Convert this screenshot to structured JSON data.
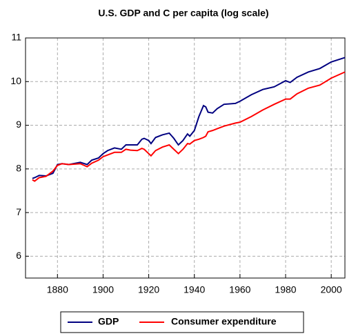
{
  "chart_data": {
    "type": "line",
    "title": "U.S.  GDP and C per capita (log scale)",
    "x": [
      1869,
      1870,
      1872,
      1875,
      1878,
      1880,
      1882,
      1885,
      1890,
      1893,
      1895,
      1898,
      1900,
      1902,
      1905,
      1908,
      1910,
      1912,
      1915,
      1917,
      1918,
      1920,
      1921,
      1923,
      1926,
      1929,
      1931,
      1933,
      1935,
      1937,
      1938,
      1940,
      1942,
      1944,
      1945,
      1946,
      1948,
      1950,
      1953,
      1958,
      1960,
      1965,
      1970,
      1975,
      1980,
      1982,
      1985,
      1990,
      1995,
      2000,
      2006
    ],
    "series": [
      {
        "name": "GDP",
        "color": "#000080",
        "values": [
          7.78,
          7.8,
          7.85,
          7.84,
          7.9,
          8.1,
          8.12,
          8.1,
          8.15,
          8.1,
          8.2,
          8.25,
          8.35,
          8.42,
          8.48,
          8.45,
          8.55,
          8.55,
          8.55,
          8.68,
          8.7,
          8.65,
          8.58,
          8.72,
          8.78,
          8.82,
          8.7,
          8.55,
          8.65,
          8.8,
          8.75,
          8.88,
          9.2,
          9.45,
          9.42,
          9.3,
          9.28,
          9.38,
          9.48,
          9.5,
          9.55,
          9.7,
          9.82,
          9.88,
          10.02,
          9.98,
          10.1,
          10.22,
          10.3,
          10.45,
          10.55
        ]
      },
      {
        "name": "Consumer expenditure",
        "color": "#ff0000",
        "values": [
          7.75,
          7.72,
          7.8,
          7.83,
          7.95,
          8.08,
          8.12,
          8.1,
          8.12,
          8.05,
          8.13,
          8.2,
          8.28,
          8.32,
          8.38,
          8.38,
          8.45,
          8.43,
          8.42,
          8.47,
          8.45,
          8.35,
          8.3,
          8.42,
          8.5,
          8.55,
          8.45,
          8.35,
          8.45,
          8.58,
          8.57,
          8.65,
          8.68,
          8.72,
          8.75,
          8.85,
          8.88,
          8.92,
          8.98,
          9.05,
          9.07,
          9.2,
          9.35,
          9.48,
          9.6,
          9.6,
          9.72,
          9.85,
          9.92,
          10.08,
          10.22
        ]
      }
    ],
    "xlim": [
      1866,
      2006
    ],
    "ylim": [
      5.5,
      11
    ],
    "xticks": [
      1880,
      1900,
      1920,
      1940,
      1960,
      1980,
      2000
    ],
    "yticks": [
      6,
      7,
      8,
      9,
      10,
      11
    ],
    "grid": true,
    "legend": "bottom"
  }
}
